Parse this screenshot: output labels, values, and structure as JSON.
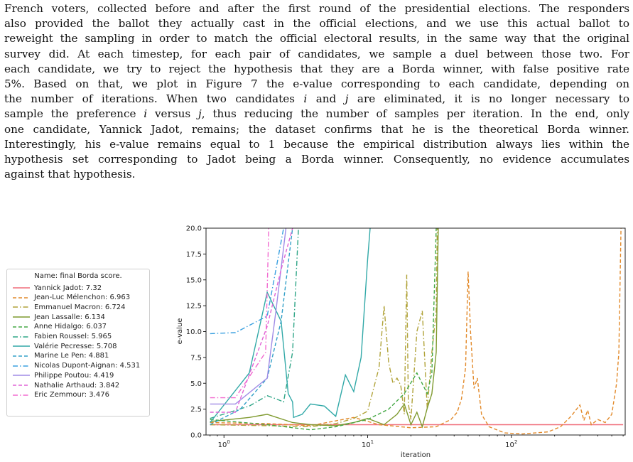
{
  "paragraph": {
    "lines": [
      [
        "French voters, collected before and after the first round of the presidential elections. The responders"
      ],
      [
        "also provided the ballot they actually cast in the official elections, and we use this actual ballot to"
      ],
      [
        "reweight the sampling in order to match the official electoral results, in the same way that the original"
      ],
      [
        "survey did. At each timestep, for each pair of candidates, we sample a duel between those two. For"
      ],
      [
        "each candidate, we try to reject the hypothesis that they are a Borda winner, with false positive rate"
      ],
      [
        "5%. Based on that, we plot in Figure 7 the e-value corresponding to each candidate, depending on"
      ],
      [
        "the number of iterations. When two candidates ",
        "i",
        " and ",
        "j",
        " are eliminated, it is no longer necessary to"
      ],
      [
        "sample the preference ",
        "i",
        " versus ",
        "j",
        ", thus reducing the number of samples per iteration. In the end, only"
      ],
      [
        "one candidate, Yannick Jadot, remains; the dataset confirms that he is the theoretical Borda winner."
      ],
      [
        "Interestingly, his e-value remains equal to 1 because the empirical distribution always lies within the"
      ],
      [
        "hypothesis set corresponding to Jadot being a Borda winner. Consequently, no evidence accumulates"
      ],
      [
        "against that hypothesis."
      ]
    ]
  },
  "chart_data": {
    "type": "line",
    "xlabel": "iteration",
    "ylabel": "e-value",
    "xscale": "log",
    "xlim": [
      0.75,
      620
    ],
    "ylim": [
      0,
      20
    ],
    "xticks": [
      {
        "value": 1,
        "label": "10^0",
        "base": "10",
        "exp": "0"
      },
      {
        "value": 10,
        "label": "10^1",
        "base": "10",
        "exp": "1"
      },
      {
        "value": 100,
        "label": "10^2",
        "base": "10",
        "exp": "2"
      }
    ],
    "yticks": [
      "0.0",
      "2.5",
      "5.0",
      "7.5",
      "10.0",
      "12.5",
      "15.0",
      "17.5",
      "20.0"
    ],
    "grid": false,
    "legend": {
      "title": "Name: final Borda score.",
      "placement": "left, outside plot"
    },
    "series": [
      {
        "name": "Yannick Jadot: 7.32",
        "color": "#f06f7c",
        "dash": "solid",
        "x": [
          0.8,
          600
        ],
        "y": [
          1.0,
          1.0
        ]
      },
      {
        "name": "Jean-Luc Mélenchon: 6.963",
        "color": "#e28a2b",
        "dash": "dashed",
        "x": [
          0.8,
          2,
          4,
          8,
          12,
          20,
          30,
          38,
          42,
          45,
          48,
          50,
          52,
          55,
          58,
          62,
          70,
          90,
          120,
          180,
          220,
          260,
          300,
          320,
          340,
          360,
          400,
          450,
          500,
          540,
          560,
          580
        ],
        "y": [
          1.2,
          1.1,
          0.9,
          1.7,
          1.0,
          0.7,
          0.8,
          1.5,
          2.2,
          3.5,
          6.5,
          15.8,
          10.0,
          4.5,
          5.5,
          2.0,
          0.8,
          0.2,
          0.1,
          0.3,
          0.8,
          1.8,
          2.9,
          1.4,
          2.4,
          1.0,
          1.5,
          1.2,
          2.0,
          5.0,
          8.0,
          20.0
        ]
      },
      {
        "name": "Emmanuel Macron: 6.724",
        "color": "#b0a238",
        "dash": "dashdot",
        "x": [
          0.8,
          2,
          4,
          6,
          8,
          10,
          12,
          13,
          14,
          15,
          16,
          17,
          18,
          18.7,
          19.2,
          20,
          22,
          24,
          26,
          28,
          30,
          30.5
        ],
        "y": [
          1.0,
          0.9,
          0.8,
          1.1,
          1.6,
          2.3,
          6.5,
          12.5,
          7.0,
          5.0,
          5.5,
          4.8,
          2.0,
          15.5,
          3.0,
          1.5,
          10.0,
          12.0,
          2.5,
          8.0,
          12.0,
          20.0
        ]
      },
      {
        "name": "Jean Lassalle: 6.134",
        "color": "#7f9a2f",
        "dash": "solid",
        "x": [
          0.8,
          1.5,
          2,
          3,
          4,
          6,
          8,
          10,
          13,
          16,
          18,
          20,
          22,
          24,
          26,
          28,
          30,
          31
        ],
        "y": [
          1.3,
          1.7,
          2.0,
          1.2,
          1.0,
          0.9,
          1.2,
          1.6,
          1.0,
          2.0,
          3.0,
          1.0,
          2.2,
          0.8,
          2.6,
          4.0,
          8.0,
          20.0
        ]
      },
      {
        "name": "Anne Hidalgo: 6.037",
        "color": "#45a845",
        "dash": "dashed",
        "x": [
          0.8,
          2,
          4,
          6,
          10,
          14,
          18,
          22,
          26,
          28,
          30
        ],
        "y": [
          1.5,
          1.0,
          0.5,
          0.8,
          1.5,
          2.5,
          4.0,
          6.0,
          4.0,
          6.0,
          20.0
        ]
      },
      {
        "name": "Fabien Roussel: 5.965",
        "color": "#2ea586",
        "dash": "dashdot",
        "x": [
          0.8,
          1.5,
          2.0,
          2.3,
          2.6,
          3.0,
          3.3
        ],
        "y": [
          1.6,
          2.8,
          3.8,
          3.5,
          3.2,
          8.0,
          20.0
        ]
      },
      {
        "name": "Valérie Pecresse: 5.708",
        "color": "#32a9a8",
        "dash": "solid",
        "x": [
          0.8,
          1.5,
          2.0,
          2.5,
          2.8,
          3.0,
          3.05,
          3.5,
          4.0,
          5.0,
          6.0,
          7.0,
          8.0,
          9.0,
          10.0,
          10.4
        ],
        "y": [
          1.2,
          6.0,
          13.8,
          11.0,
          4.0,
          3.2,
          1.7,
          2.0,
          3.0,
          2.8,
          1.8,
          5.8,
          4.2,
          7.5,
          17.0,
          20.0
        ]
      },
      {
        "name": "Marine Le Pen: 4.881",
        "color": "#32a0c8",
        "dash": "dashed",
        "x": [
          0.8,
          1.3,
          2.0,
          2.5,
          3.0
        ],
        "y": [
          1.0,
          2.5,
          5.5,
          11.0,
          20.0
        ]
      },
      {
        "name": "Nicolas Dupont-Aignan: 4.531",
        "color": "#3aa0e0",
        "dash": "dashdot",
        "x": [
          0.8,
          1.2,
          2.0,
          2.3,
          2.6
        ],
        "y": [
          9.8,
          9.9,
          11.5,
          16.0,
          20.0
        ]
      },
      {
        "name": "Philippe Poutou: 4.419",
        "color": "#a08ce6",
        "dash": "solid",
        "x": [
          0.8,
          1.2,
          2.0,
          2.3,
          2.7
        ],
        "y": [
          3.0,
          3.0,
          5.5,
          12.0,
          20.0
        ]
      },
      {
        "name": "Nathalie Arthaud: 3.842",
        "color": "#e063d6",
        "dash": "dashed",
        "x": [
          0.8,
          1.2,
          2.0,
          2.5,
          3.0
        ],
        "y": [
          2.2,
          2.2,
          10.5,
          16.0,
          20.0
        ]
      },
      {
        "name": "Eric Zemmour: 3.476",
        "color": "#f26bd0",
        "dash": "dashdot",
        "x": [
          0.8,
          1.2,
          1.95,
          2.05,
          2.1
        ],
        "y": [
          3.6,
          3.6,
          8.0,
          20.0,
          20.0
        ]
      }
    ]
  }
}
